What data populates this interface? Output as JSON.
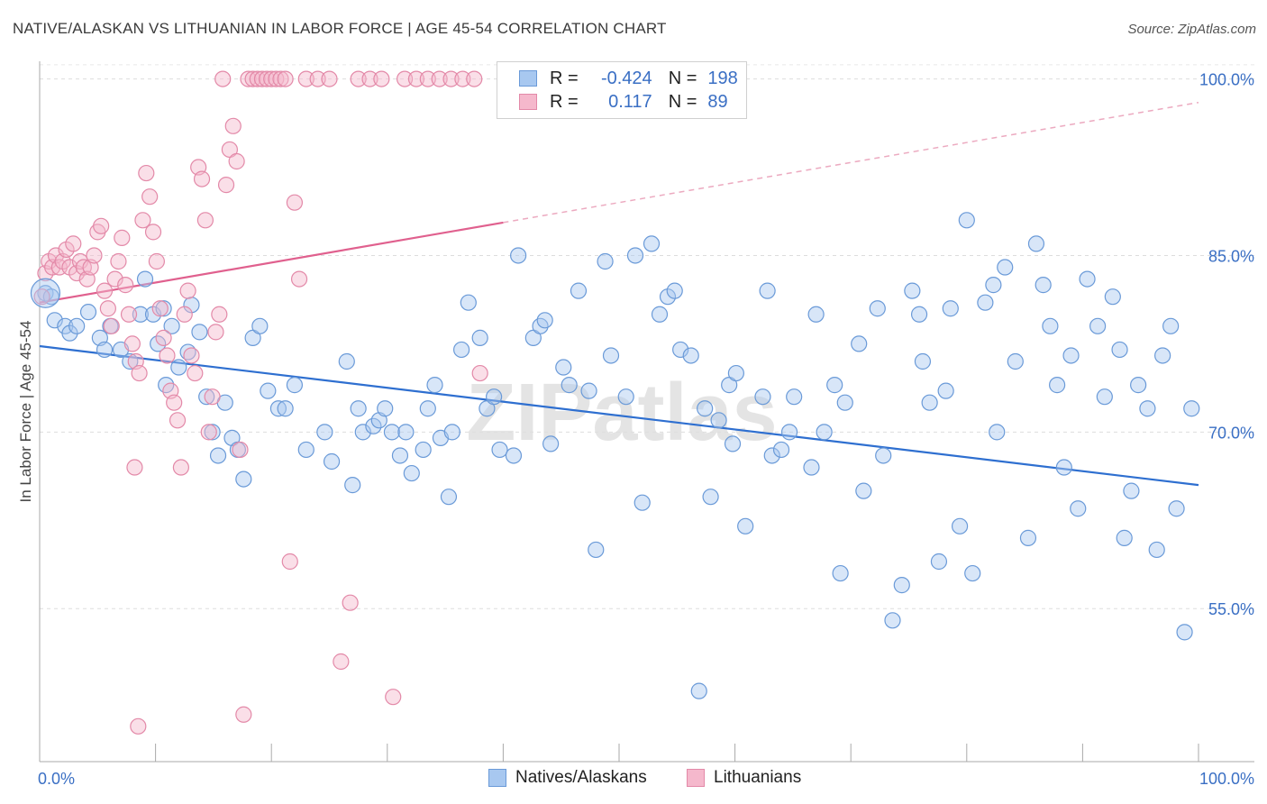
{
  "title": "NATIVE/ALASKAN VS LITHUANIAN IN LABOR FORCE | AGE 45-54 CORRELATION CHART",
  "source": "Source: ZipAtlas.com",
  "watermark": "ZIPatlas",
  "legend": {
    "rows": [
      {
        "r_label": "R =",
        "r_value": "-0.424",
        "n_label": "N =",
        "n_value": "198",
        "color": "#a8c8f0",
        "border": "#6a9ad8"
      },
      {
        "r_label": "R =",
        "r_value": "0.117",
        "n_label": "N =",
        "n_value": "89",
        "color": "#f5b8cc",
        "border": "#e389a8"
      }
    ]
  },
  "bottom_legend": [
    {
      "label": "Natives/Alaskans",
      "color": "#a8c8f0",
      "border": "#6a9ad8"
    },
    {
      "label": "Lithuanians",
      "color": "#f5b8cc",
      "border": "#e389a8"
    }
  ],
  "chart_data": {
    "type": "scatter",
    "ylabel": "In Labor Force | Age 45-54",
    "xlim": [
      0,
      100
    ],
    "ylim": [
      42,
      101.5
    ],
    "x_tick_labels": [
      "0.0%",
      "100.0%"
    ],
    "y_ticks": [
      {
        "value": 55,
        "label": "55.0%"
      },
      {
        "value": 70,
        "label": "70.0%"
      },
      {
        "value": 85,
        "label": "85.0%"
      },
      {
        "value": 100,
        "label": "100.0%"
      }
    ],
    "grid": true,
    "series": [
      {
        "name": "Natives/Alaskans",
        "color": "#a8c8f0",
        "stroke": "#6a9ad8",
        "trend": {
          "x": [
            0,
            100
          ],
          "y": [
            77.3,
            65.5
          ],
          "color": "#2e6fd0"
        },
        "points": [
          [
            0.5,
            81.8
          ],
          [
            1.0,
            81.5
          ],
          [
            1.3,
            79.5
          ],
          [
            2.2,
            79.0
          ],
          [
            2.6,
            78.4
          ],
          [
            3.2,
            79.0
          ],
          [
            4.2,
            80.2
          ],
          [
            5.2,
            78.0
          ],
          [
            5.6,
            77.0
          ],
          [
            6.1,
            79.0
          ],
          [
            7.0,
            77.0
          ],
          [
            7.8,
            76.0
          ],
          [
            8.7,
            80.0
          ],
          [
            9.1,
            83.0
          ],
          [
            9.8,
            80.0
          ],
          [
            10.2,
            77.5
          ],
          [
            10.7,
            80.5
          ],
          [
            10.9,
            74.0
          ],
          [
            11.4,
            79.0
          ],
          [
            12.0,
            75.5
          ],
          [
            12.8,
            76.8
          ],
          [
            13.1,
            80.8
          ],
          [
            13.8,
            78.5
          ],
          [
            14.4,
            73.0
          ],
          [
            14.9,
            70.0
          ],
          [
            15.4,
            68.0
          ],
          [
            16.0,
            72.5
          ],
          [
            16.6,
            69.5
          ],
          [
            17.1,
            68.5
          ],
          [
            17.6,
            66.0
          ],
          [
            18.4,
            78.0
          ],
          [
            19.0,
            79.0
          ],
          [
            19.7,
            73.5
          ],
          [
            20.6,
            72.0
          ],
          [
            21.2,
            72.0
          ],
          [
            22.0,
            74.0
          ],
          [
            23.0,
            68.5
          ],
          [
            24.6,
            70.0
          ],
          [
            25.2,
            67.5
          ],
          [
            26.5,
            76.0
          ],
          [
            27.0,
            65.5
          ],
          [
            27.5,
            72.0
          ],
          [
            27.9,
            70.0
          ],
          [
            28.8,
            70.5
          ],
          [
            29.3,
            71.0
          ],
          [
            29.8,
            72.0
          ],
          [
            30.4,
            70.0
          ],
          [
            31.1,
            68.0
          ],
          [
            31.6,
            70.0
          ],
          [
            32.1,
            66.5
          ],
          [
            33.1,
            68.5
          ],
          [
            33.5,
            72.0
          ],
          [
            34.1,
            74.0
          ],
          [
            34.6,
            69.5
          ],
          [
            35.3,
            64.5
          ],
          [
            35.6,
            70.0
          ],
          [
            36.4,
            77.0
          ],
          [
            37.0,
            81.0
          ],
          [
            38.0,
            78.0
          ],
          [
            38.6,
            72.0
          ],
          [
            39.2,
            73.0
          ],
          [
            39.7,
            68.5
          ],
          [
            40.9,
            68.0
          ],
          [
            41.3,
            85.0
          ],
          [
            42.6,
            78.0
          ],
          [
            43.2,
            79.0
          ],
          [
            43.6,
            79.5
          ],
          [
            44.1,
            69.0
          ],
          [
            45.2,
            75.5
          ],
          [
            45.7,
            74.0
          ],
          [
            46.5,
            82.0
          ],
          [
            47.4,
            73.5
          ],
          [
            48.0,
            60.0
          ],
          [
            48.8,
            84.5
          ],
          [
            49.3,
            76.5
          ],
          [
            50.6,
            73.0
          ],
          [
            51.4,
            85.0
          ],
          [
            52.0,
            64.0
          ],
          [
            52.8,
            86.0
          ],
          [
            53.5,
            80.0
          ],
          [
            54.2,
            81.5
          ],
          [
            54.8,
            82.0
          ],
          [
            55.3,
            77.0
          ],
          [
            56.2,
            76.5
          ],
          [
            56.9,
            48.0
          ],
          [
            57.4,
            72.0
          ],
          [
            57.9,
            64.5
          ],
          [
            58.6,
            71.0
          ],
          [
            59.5,
            74.0
          ],
          [
            59.8,
            69.0
          ],
          [
            60.1,
            75.0
          ],
          [
            60.9,
            62.0
          ],
          [
            62.4,
            73.0
          ],
          [
            62.8,
            82.0
          ],
          [
            63.2,
            68.0
          ],
          [
            64.0,
            68.5
          ],
          [
            64.7,
            70.0
          ],
          [
            65.1,
            73.0
          ],
          [
            66.6,
            67.0
          ],
          [
            67.0,
            80.0
          ],
          [
            67.7,
            70.0
          ],
          [
            68.6,
            74.0
          ],
          [
            69.1,
            58.0
          ],
          [
            69.5,
            72.5
          ],
          [
            70.7,
            77.5
          ],
          [
            71.1,
            65.0
          ],
          [
            72.3,
            80.5
          ],
          [
            72.8,
            68.0
          ],
          [
            73.6,
            54.0
          ],
          [
            74.4,
            57.0
          ],
          [
            75.3,
            82.0
          ],
          [
            75.9,
            80.0
          ],
          [
            76.2,
            76.0
          ],
          [
            76.8,
            72.5
          ],
          [
            77.6,
            59.0
          ],
          [
            78.2,
            73.5
          ],
          [
            78.6,
            80.5
          ],
          [
            79.4,
            62.0
          ],
          [
            80.0,
            88.0
          ],
          [
            80.5,
            58.0
          ],
          [
            81.6,
            81.0
          ],
          [
            82.3,
            82.5
          ],
          [
            82.6,
            70.0
          ],
          [
            83.3,
            84.0
          ],
          [
            84.2,
            76.0
          ],
          [
            85.3,
            61.0
          ],
          [
            86.0,
            86.0
          ],
          [
            86.6,
            82.5
          ],
          [
            87.2,
            79.0
          ],
          [
            87.8,
            74.0
          ],
          [
            88.4,
            67.0
          ],
          [
            89.0,
            76.5
          ],
          [
            89.6,
            63.5
          ],
          [
            90.4,
            83.0
          ],
          [
            91.3,
            79.0
          ],
          [
            91.9,
            73.0
          ],
          [
            92.6,
            81.5
          ],
          [
            93.2,
            77.0
          ],
          [
            93.6,
            61.0
          ],
          [
            94.2,
            65.0
          ],
          [
            94.8,
            74.0
          ],
          [
            95.6,
            72.0
          ],
          [
            96.4,
            60.0
          ],
          [
            96.9,
            76.5
          ],
          [
            97.6,
            79.0
          ],
          [
            98.1,
            63.5
          ],
          [
            98.8,
            53.0
          ],
          [
            99.4,
            72.0
          ]
        ]
      },
      {
        "name": "Lithuanians",
        "color": "#f5b8cc",
        "stroke": "#e389a8",
        "trend": {
          "x": [
            0,
            40
          ],
          "y": [
            81.0,
            87.8
          ],
          "color": "#e0608e",
          "dash_to": [
            100,
            98.0
          ]
        },
        "points": [
          [
            0.2,
            81.5
          ],
          [
            0.5,
            83.5
          ],
          [
            0.8,
            84.5
          ],
          [
            1.1,
            84.0
          ],
          [
            1.4,
            85.0
          ],
          [
            1.7,
            84.0
          ],
          [
            2.0,
            84.5
          ],
          [
            2.3,
            85.5
          ],
          [
            2.6,
            84.0
          ],
          [
            2.9,
            86.0
          ],
          [
            3.2,
            83.5
          ],
          [
            3.5,
            84.5
          ],
          [
            3.8,
            84.0
          ],
          [
            4.1,
            83.0
          ],
          [
            4.4,
            84.0
          ],
          [
            4.7,
            85.0
          ],
          [
            5.0,
            87.0
          ],
          [
            5.3,
            87.5
          ],
          [
            5.6,
            82.0
          ],
          [
            5.9,
            80.5
          ],
          [
            6.2,
            79.0
          ],
          [
            6.5,
            83.0
          ],
          [
            6.8,
            84.5
          ],
          [
            7.1,
            86.5
          ],
          [
            7.4,
            82.5
          ],
          [
            7.7,
            80.0
          ],
          [
            8.0,
            77.5
          ],
          [
            8.3,
            76.0
          ],
          [
            8.6,
            75.0
          ],
          [
            8.9,
            88.0
          ],
          [
            9.2,
            92.0
          ],
          [
            9.5,
            90.0
          ],
          [
            9.8,
            87.0
          ],
          [
            10.1,
            84.5
          ],
          [
            10.4,
            80.5
          ],
          [
            10.7,
            78.0
          ],
          [
            11.0,
            76.5
          ],
          [
            11.3,
            73.5
          ],
          [
            11.6,
            72.5
          ],
          [
            11.9,
            71.0
          ],
          [
            12.2,
            67.0
          ],
          [
            12.5,
            80.0
          ],
          [
            12.8,
            82.0
          ],
          [
            13.1,
            76.5
          ],
          [
            13.4,
            75.0
          ],
          [
            13.7,
            92.5
          ],
          [
            14.0,
            91.5
          ],
          [
            14.3,
            88.0
          ],
          [
            14.6,
            70.0
          ],
          [
            14.9,
            73.0
          ],
          [
            15.2,
            78.5
          ],
          [
            15.5,
            80.0
          ],
          [
            15.8,
            100.0
          ],
          [
            16.1,
            91.0
          ],
          [
            16.4,
            94.0
          ],
          [
            16.7,
            96.0
          ],
          [
            17.0,
            93.0
          ],
          [
            17.3,
            68.5
          ],
          [
            17.6,
            46.0
          ],
          [
            18.0,
            100.0
          ],
          [
            18.4,
            100.0
          ],
          [
            18.8,
            100.0
          ],
          [
            19.2,
            100.0
          ],
          [
            19.6,
            100.0
          ],
          [
            20.0,
            100.0
          ],
          [
            20.4,
            100.0
          ],
          [
            20.8,
            100.0
          ],
          [
            21.2,
            100.0
          ],
          [
            21.6,
            59.0
          ],
          [
            22.0,
            89.5
          ],
          [
            22.4,
            83.0
          ],
          [
            23.0,
            100.0
          ],
          [
            24.0,
            100.0
          ],
          [
            25.0,
            100.0
          ],
          [
            26.0,
            50.5
          ],
          [
            26.8,
            55.5
          ],
          [
            27.5,
            100.0
          ],
          [
            28.5,
            100.0
          ],
          [
            29.5,
            100.0
          ],
          [
            30.5,
            47.5
          ],
          [
            31.5,
            100.0
          ],
          [
            32.5,
            100.0
          ],
          [
            33.5,
            100.0
          ],
          [
            34.5,
            100.0
          ],
          [
            35.5,
            100.0
          ],
          [
            36.5,
            100.0
          ],
          [
            37.5,
            100.0
          ],
          [
            38.0,
            75.0
          ],
          [
            8.5,
            45.0
          ],
          [
            8.2,
            67.0
          ]
        ]
      }
    ]
  }
}
